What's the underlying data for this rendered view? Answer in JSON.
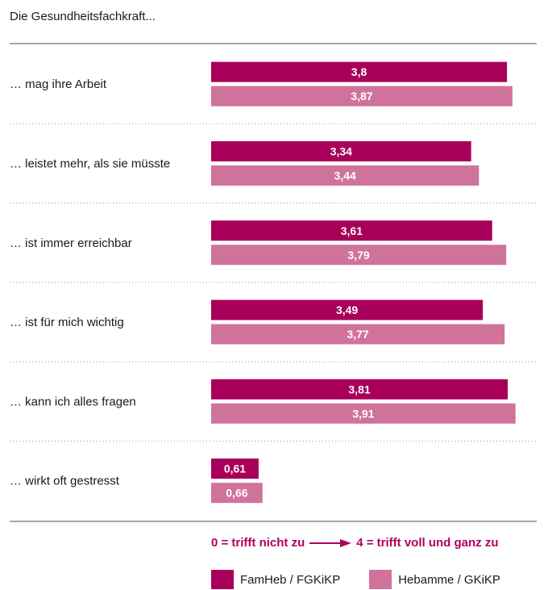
{
  "title": "Die Gesundheitsfachkraft...",
  "colors": {
    "series1": "#a8005a",
    "series2": "#d0739a",
    "rule": "#a6a6a6",
    "dotted": "#9a9a9a",
    "scale_text": "#b0005e"
  },
  "chart_data": {
    "type": "bar",
    "orientation": "horizontal",
    "xlim": [
      0,
      4
    ],
    "categories": [
      "… mag ihre Arbeit",
      "… leistet mehr, als sie müsste",
      "… ist immer erreichbar",
      "… ist für mich wichtig",
      "… kann ich alles fragen",
      "… wirkt oft gestresst"
    ],
    "series": [
      {
        "name": "FamHeb / FGKiKP",
        "values": [
          3.8,
          3.34,
          3.61,
          3.49,
          3.81,
          0.61
        ],
        "labels": [
          "3,8",
          "3,34",
          "3,61",
          "3,49",
          "3,81",
          "0,61"
        ]
      },
      {
        "name": "Hebamme / GKiKP",
        "values": [
          3.87,
          3.44,
          3.79,
          3.77,
          3.91,
          0.66
        ],
        "labels": [
          "3,87",
          "3,44",
          "3,79",
          "3,77",
          "3,91",
          "0,66"
        ]
      }
    ],
    "scale_note": {
      "low": "0 = trifft nicht zu",
      "high": "4 = trifft voll und ganz zu"
    },
    "legend_position": "bottom"
  }
}
